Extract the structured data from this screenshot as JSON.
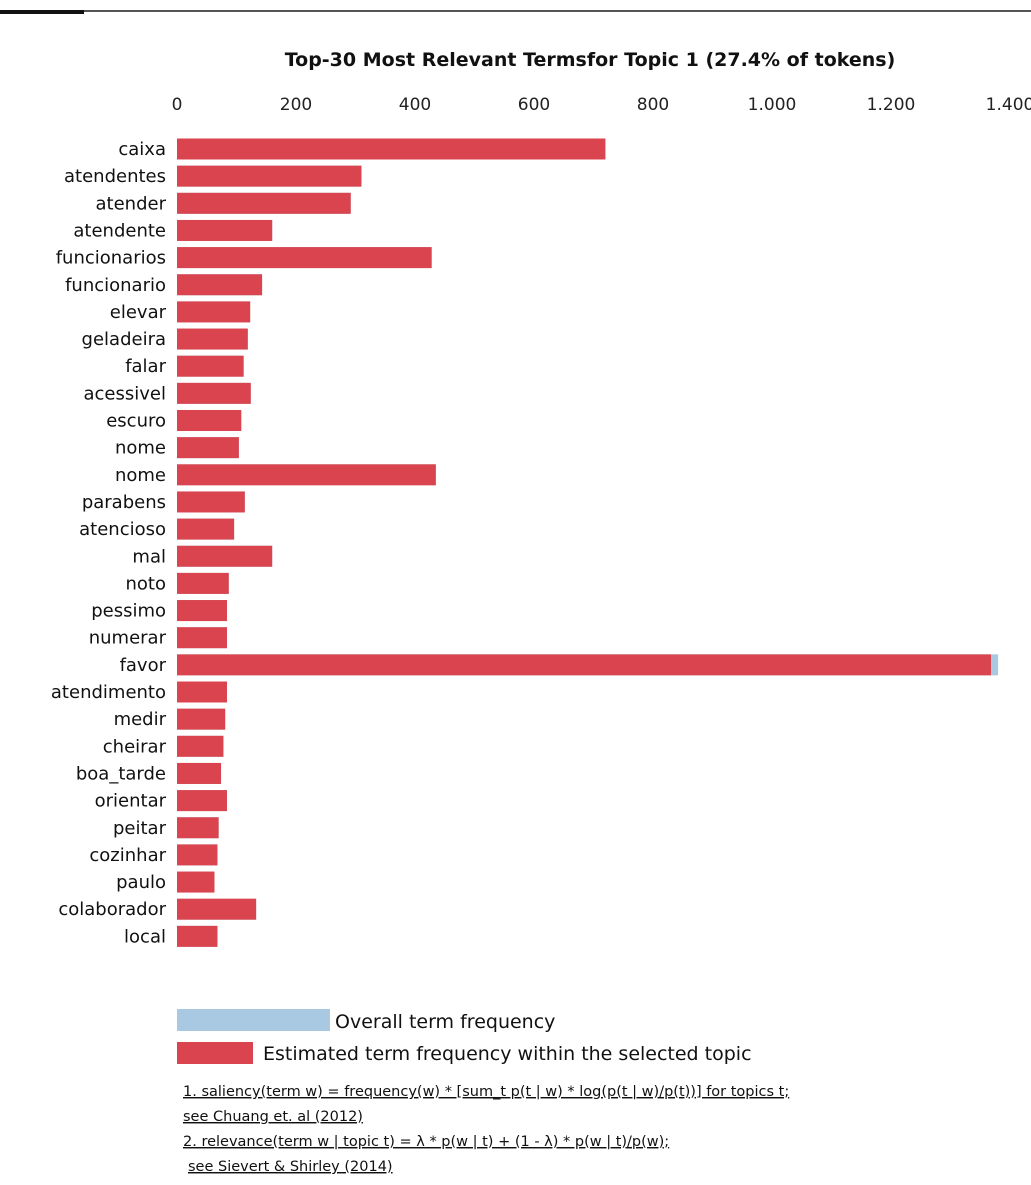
{
  "chart_data": {
    "type": "bar",
    "orientation": "horizontal",
    "title": "Top-30 Most Relevant Termsfor Topic 1 (27.4% of tokens)",
    "xlim": [
      0,
      1400
    ],
    "x_ticks": [
      0,
      200,
      400,
      600,
      800,
      1000,
      1200,
      1400
    ],
    "x_tick_labels": [
      "0",
      "200",
      "400",
      "600",
      "800",
      "1.000",
      "1.200",
      "1.400"
    ],
    "x_axis_position": "top",
    "grid": false,
    "categories": [
      "caixa",
      "atendentes",
      "atender",
      "atendente",
      "funcionarios",
      "funcionario",
      "elevar",
      "geladeira",
      "falar",
      "acessivel",
      "escuro",
      "nome",
      "nome",
      "parabens",
      "atencioso",
      "mal",
      "noto",
      "pessimo",
      "numerar",
      "favor",
      "atendimento",
      "medir",
      "cheirar",
      "boa_tarde",
      "orientar",
      "peitar",
      "cozinhar",
      "paulo",
      "colaborador",
      "local"
    ],
    "series": [
      {
        "name": "Overall term frequency",
        "color": "#a9c9e2",
        "values": [
          720,
          310,
          292,
          160,
          428,
          143,
          123,
          119,
          112,
          124,
          108,
          104,
          435,
          114,
          96,
          160,
          87,
          84,
          84,
          1380,
          84,
          81,
          78,
          74,
          84,
          70,
          68,
          63,
          133,
          68
        ]
      },
      {
        "name": "Estimated term frequency within the selected topic",
        "color": "#d9444e",
        "values": [
          720,
          310,
          292,
          160,
          428,
          143,
          123,
          119,
          112,
          124,
          108,
          104,
          435,
          114,
          96,
          160,
          87,
          84,
          84,
          1368,
          84,
          81,
          78,
          74,
          84,
          70,
          68,
          63,
          133,
          68
        ]
      }
    ],
    "legend": {
      "placement": "bottom-left",
      "items": [
        {
          "label": "Overall term frequency",
          "color": "#a9c9e2"
        },
        {
          "label": "Estimated term frequency within the selected topic",
          "color": "#d9444e"
        }
      ]
    },
    "notes": [
      "1. saliency(term w) = frequency(w) * [sum_t p(t | w) * log(p(t | w)/p(t))] for topics t;",
      "see Chuang et. al (2012)",
      "2. relevance(term w | topic t) = λ * p(w | t) + (1 - λ) * p(w | t)/p(w);",
      "see Sievert & Shirley (2014)"
    ]
  }
}
